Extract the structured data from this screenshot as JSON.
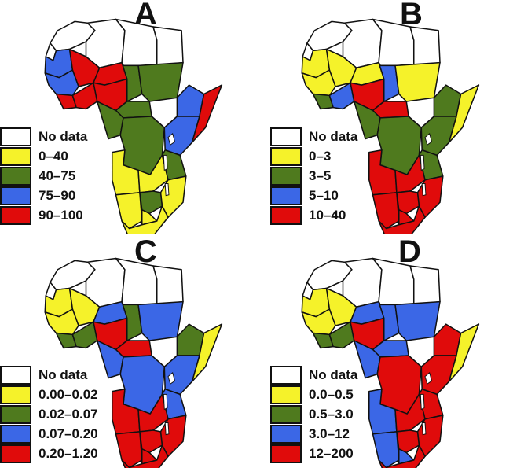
{
  "colors": {
    "no_data": "#ffffff",
    "yellow": "#f5f22a",
    "green": "#4f7a1e",
    "blue": "#3b67e6",
    "red": "#e00b0b",
    "outline": "#111111"
  },
  "panels": [
    {
      "letter": "A",
      "legend": [
        {
          "label": "No data",
          "color": "#ffffff"
        },
        {
          "label": "0–40",
          "color": "#f5f22a"
        },
        {
          "label": "40–75",
          "color": "#4f7a1e"
        },
        {
          "label": "75–90",
          "color": "#3b67e6"
        },
        {
          "label": "90–100",
          "color": "#e00b0b"
        }
      ]
    },
    {
      "letter": "B",
      "legend": [
        {
          "label": "No data",
          "color": "#ffffff"
        },
        {
          "label": "0–3",
          "color": "#f5f22a"
        },
        {
          "label": "3–5",
          "color": "#4f7a1e"
        },
        {
          "label": "5–10",
          "color": "#3b67e6"
        },
        {
          "label": "10–40",
          "color": "#e00b0b"
        }
      ]
    },
    {
      "letter": "C",
      "legend": [
        {
          "label": "No data",
          "color": "#ffffff"
        },
        {
          "label": "0.00–0.02",
          "color": "#f5f22a"
        },
        {
          "label": "0.02–0.07",
          "color": "#4f7a1e"
        },
        {
          "label": "0.07–0.20",
          "color": "#3b67e6"
        },
        {
          "label": "0.20–1.20",
          "color": "#e00b0b"
        }
      ]
    },
    {
      "letter": "D",
      "legend": [
        {
          "label": "No data",
          "color": "#ffffff"
        },
        {
          "label": "0.0–0.5",
          "color": "#f5f22a"
        },
        {
          "label": "0.5–3.0",
          "color": "#4f7a1e"
        },
        {
          "label": "3.0–12",
          "color": "#3b67e6"
        },
        {
          "label": " 12–200",
          "color": "#e00b0b"
        }
      ]
    }
  ]
}
